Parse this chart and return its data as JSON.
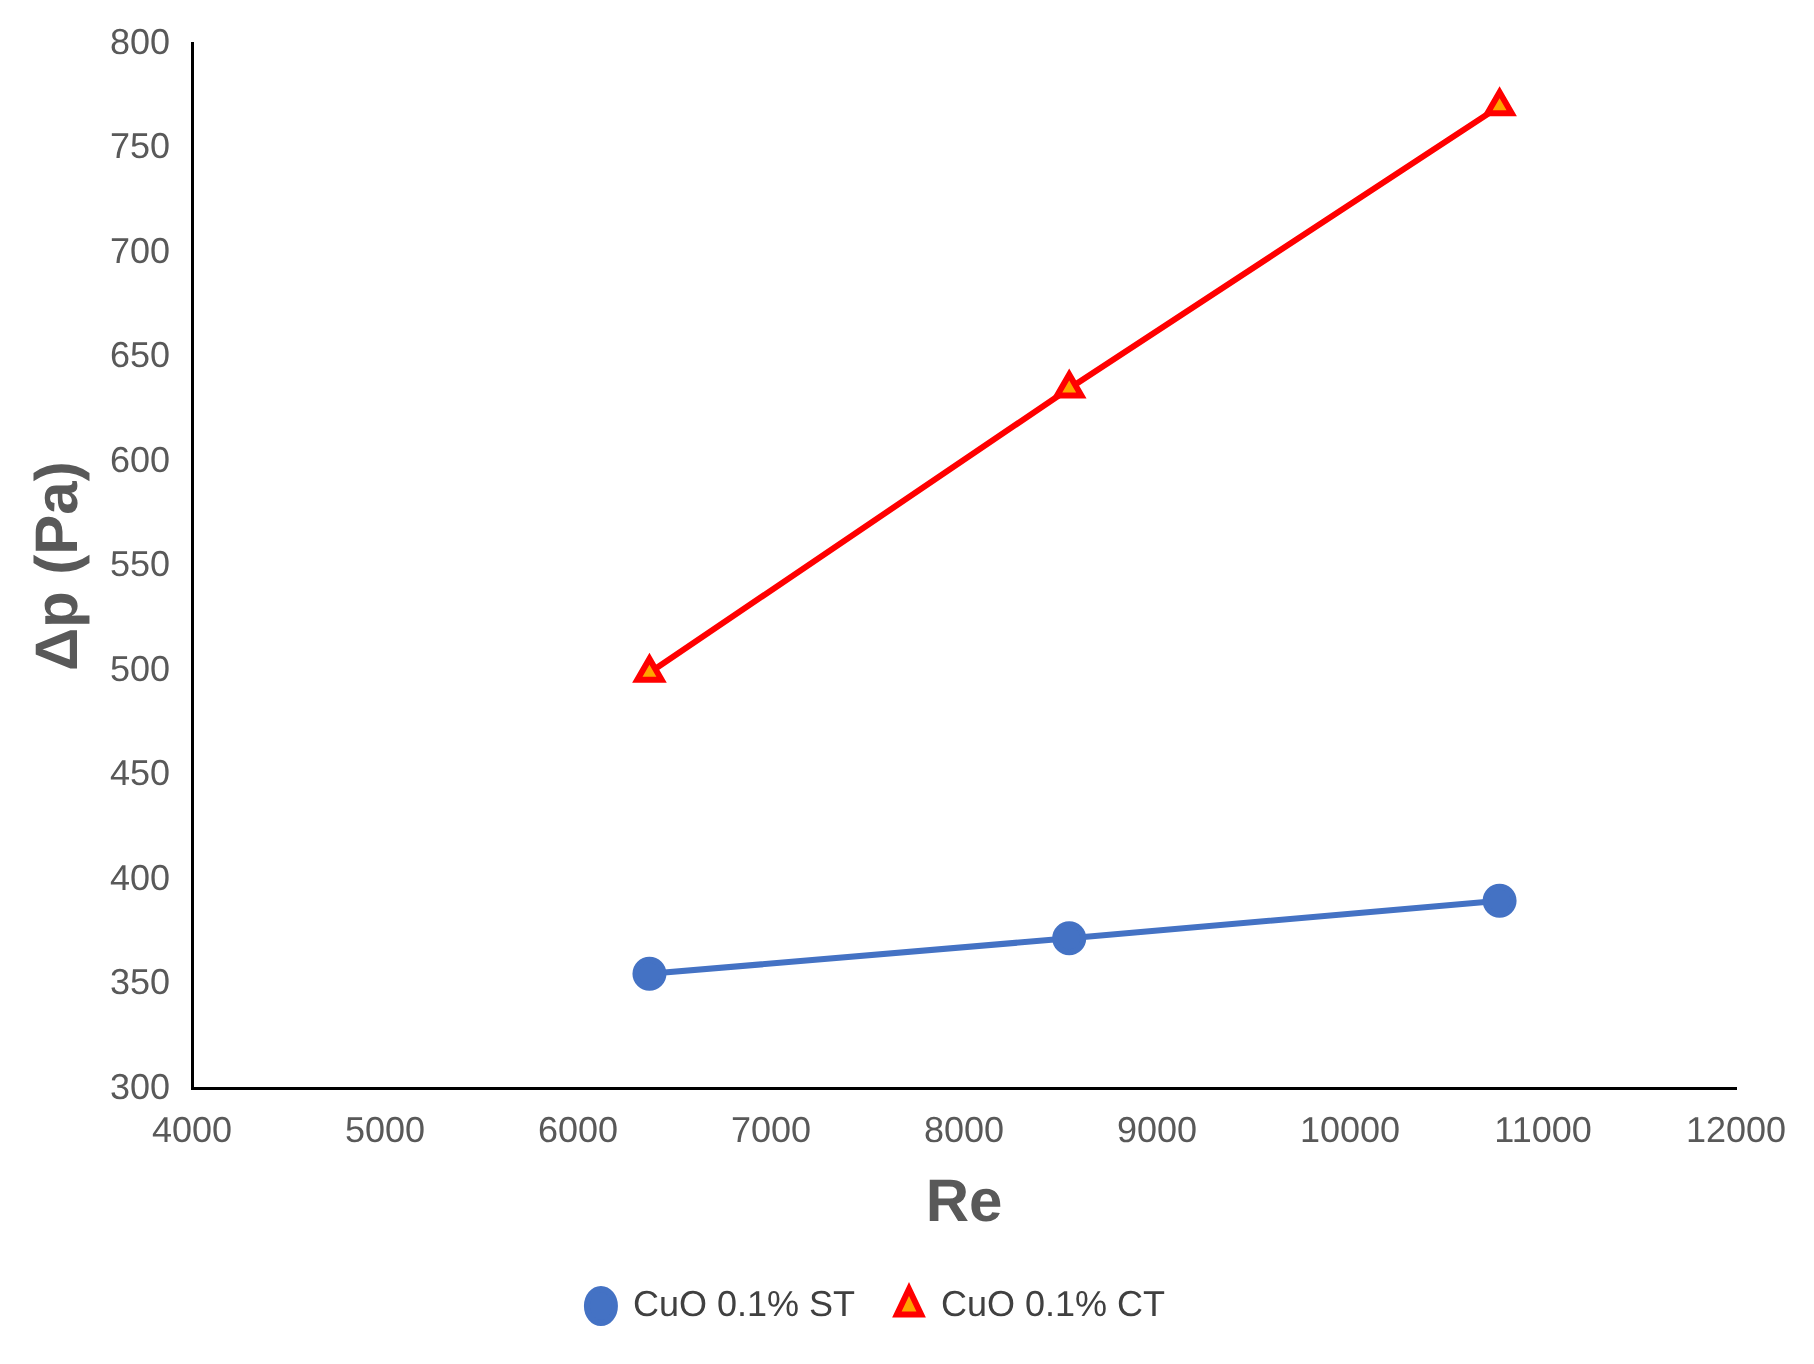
{
  "chart_data": {
    "type": "line",
    "xlabel": "Re",
    "ylabel": "Δp (Pa)",
    "x": [
      6370,
      8545,
      10775
    ],
    "series": [
      {
        "name": "CuO 0.1% ST",
        "color": "#4472c4",
        "values": [
          355,
          372,
          390
        ],
        "marker": "circle"
      },
      {
        "name": "CuO 0.1% CT",
        "color": "#ff0000",
        "values": [
          499,
          635,
          770
        ],
        "marker": "triangle"
      }
    ],
    "xlim": [
      4000,
      12000
    ],
    "xticks": [
      4000,
      5000,
      6000,
      7000,
      8000,
      9000,
      10000,
      11000,
      12000
    ],
    "ylim": [
      300,
      800
    ],
    "yticks": [
      300,
      350,
      400,
      450,
      500,
      550,
      600,
      650,
      700,
      750,
      800
    ],
    "grid": false,
    "legend": "bottom"
  }
}
